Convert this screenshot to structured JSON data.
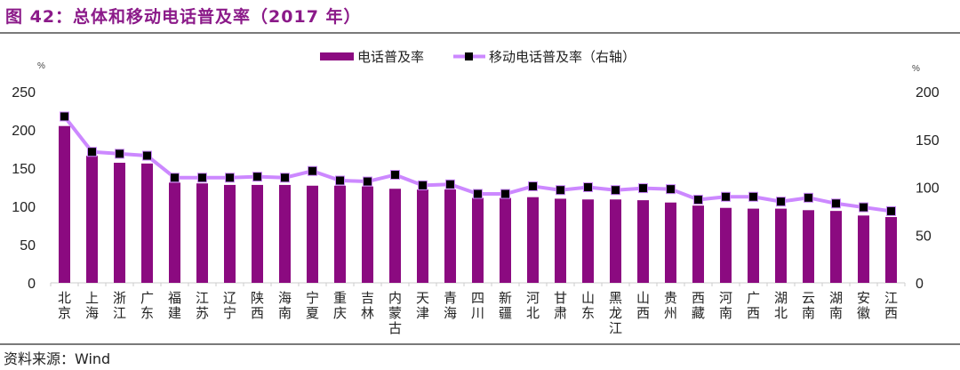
{
  "title": "图 42：总体和移动电话普及率（2017 年）",
  "source": "资料来源：Wind",
  "colors": {
    "title": "#8b1a89",
    "bar": "#8b0a80",
    "line": "#cc88ff",
    "marker": "#000000"
  },
  "chart_data": {
    "type": "bar+line",
    "left_unit": "%",
    "right_unit": "%",
    "ylim_left": [
      0,
      250
    ],
    "yticks_left": [
      0,
      50,
      100,
      150,
      200,
      250
    ],
    "ylim_right": [
      0,
      200
    ],
    "yticks_right": [
      0,
      50,
      100,
      150,
      200
    ],
    "legend_placement": "top-center",
    "grid": false,
    "categories": [
      "北京",
      "上海",
      "浙江",
      "广东",
      "福建",
      "江苏",
      "辽宁",
      "陕西",
      "海南",
      "宁夏",
      "重庆",
      "吉林",
      "内蒙古",
      "天津",
      "青海",
      "四川",
      "新疆",
      "河北",
      "甘肃",
      "山东",
      "黑龙江",
      "山西",
      "贵州",
      "西藏",
      "河南",
      "广西",
      "湖北",
      "云南",
      "湖南",
      "安徽",
      "江西"
    ],
    "series": [
      {
        "name": "电话普及率",
        "type": "bar",
        "axis": "left",
        "values": [
          205,
          166,
          157,
          156,
          131,
          130,
          128,
          128,
          128,
          127,
          127,
          126,
          123,
          122,
          122,
          111,
          111,
          112,
          110,
          109,
          109,
          108,
          105,
          101,
          98,
          97,
          97,
          95,
          94,
          88,
          86
        ]
      },
      {
        "name": "移动电话普及率（右轴）",
        "type": "line",
        "axis": "right",
        "values": [
          174,
          137,
          135,
          133,
          110,
          110,
          110,
          111,
          110,
          117,
          107,
          106,
          113,
          102,
          103,
          93,
          93,
          101,
          97,
          100,
          97,
          99,
          98,
          87,
          90,
          90,
          85,
          89,
          83,
          79,
          75
        ]
      }
    ]
  }
}
